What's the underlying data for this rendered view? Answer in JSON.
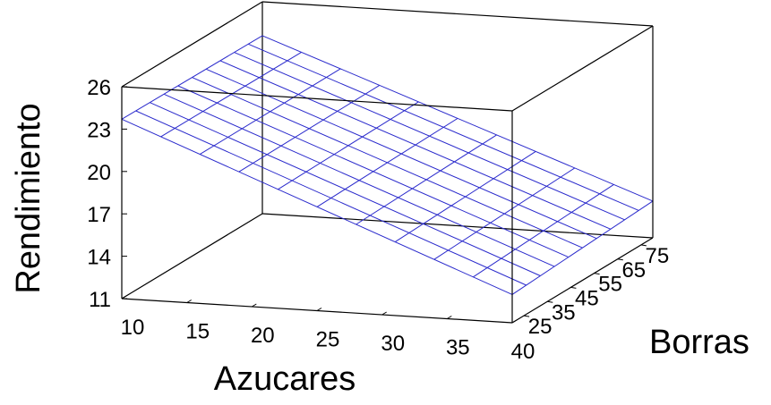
{
  "chart_data": {
    "type": "surface",
    "title": "",
    "xlabel": "Azucares",
    "ylabel": "Borras",
    "zlabel": "Rendimiento",
    "x_ticks": [
      "10",
      "15",
      "20",
      "25",
      "30",
      "35",
      "40"
    ],
    "y_ticks": [
      "25",
      "35",
      "45",
      "55",
      "65",
      "75"
    ],
    "z_ticks": [
      "26",
      "23",
      "20",
      "17",
      "14",
      "11"
    ],
    "xlim": [
      10,
      40
    ],
    "ylim": [
      20,
      80
    ],
    "zlim": [
      11,
      26
    ],
    "surface": {
      "x_range": [
        10,
        40
      ],
      "y_range": [
        20,
        80
      ],
      "z_at_x10_y20": 23.7,
      "z_at_x40_y20": 13.0,
      "z_at_x10_y80": 23.6,
      "z_at_x40_y80": 13.6,
      "x_lines": 10,
      "y_lines": 10
    },
    "grid": false,
    "colors": {
      "surface": "#2a2acc",
      "box": "#000000"
    }
  }
}
